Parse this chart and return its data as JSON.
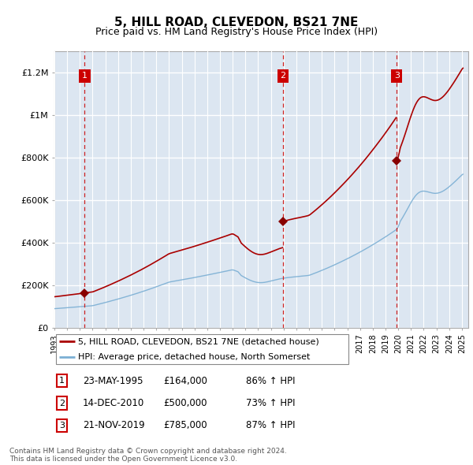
{
  "title": "5, HILL ROAD, CLEVEDON, BS21 7NE",
  "subtitle": "Price paid vs. HM Land Registry's House Price Index (HPI)",
  "ylim": [
    0,
    1300000
  ],
  "yticks": [
    0,
    200000,
    400000,
    600000,
    800000,
    1000000,
    1200000
  ],
  "ytick_labels": [
    "£0",
    "£200K",
    "£400K",
    "£600K",
    "£800K",
    "£1M",
    "£1.2M"
  ],
  "xlim_start": 1993.0,
  "xlim_end": 2025.5,
  "plot_bg_color": "#dce6f1",
  "hatch_end_year": 1995.4,
  "grid_color": "#ffffff",
  "price_line_color": "#aa0000",
  "hpi_line_color": "#7bafd4",
  "sale_marker_color": "#880000",
  "label_box_color": "#cc0000",
  "transactions": [
    {
      "num": 1,
      "date": "23-MAY-1995",
      "year": 1995.38,
      "price": 164000
    },
    {
      "num": 2,
      "date": "14-DEC-2010",
      "year": 2010.95,
      "price": 500000
    },
    {
      "num": 3,
      "date": "21-NOV-2019",
      "year": 2019.88,
      "price": 785000
    }
  ],
  "transaction_labels": [
    {
      "num": "1",
      "date": "23-MAY-1995",
      "price": "£164,000",
      "hpi": "86% ↑ HPI"
    },
    {
      "num": "2",
      "date": "14-DEC-2010",
      "price": "£500,000",
      "hpi": "73% ↑ HPI"
    },
    {
      "num": "3",
      "date": "21-NOV-2019",
      "price": "£785,000",
      "hpi": "87% ↑ HPI"
    }
  ],
  "legend_entries": [
    "5, HILL ROAD, CLEVEDON, BS21 7NE (detached house)",
    "HPI: Average price, detached house, North Somerset"
  ],
  "footer": "Contains HM Land Registry data © Crown copyright and database right 2024.\nThis data is licensed under the Open Government Licence v3.0.",
  "xticks": [
    1993,
    1994,
    1995,
    1996,
    1997,
    1998,
    1999,
    2000,
    2001,
    2002,
    2003,
    2004,
    2005,
    2006,
    2007,
    2008,
    2009,
    2010,
    2011,
    2012,
    2013,
    2014,
    2015,
    2016,
    2017,
    2018,
    2019,
    2020,
    2021,
    2022,
    2023,
    2024,
    2025
  ]
}
